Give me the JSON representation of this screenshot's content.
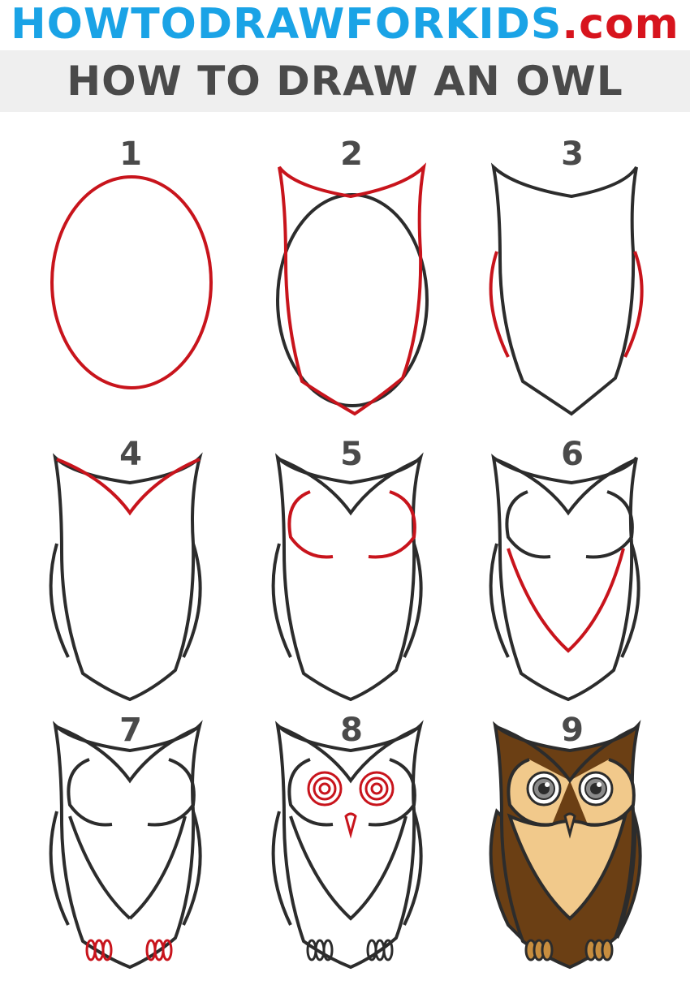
{
  "header": {
    "site_name": "HOWTODRAWFORKIDS",
    "site_domain": ".com",
    "brand_color": "#1aa3e6",
    "accent_color": "#d7141d"
  },
  "title": "HOW TO DRAW AN OWL",
  "colors": {
    "outline": "#2c2c2c",
    "new_step_line": "#c8141c",
    "owl_dark_brown": "#6b3f14",
    "owl_light_tan": "#f1c98b",
    "title_band": "#efefef"
  },
  "steps": [
    {
      "number": "1"
    },
    {
      "number": "2"
    },
    {
      "number": "3"
    },
    {
      "number": "4"
    },
    {
      "number": "5"
    },
    {
      "number": "6"
    },
    {
      "number": "7"
    },
    {
      "number": "8"
    },
    {
      "number": "9"
    }
  ]
}
